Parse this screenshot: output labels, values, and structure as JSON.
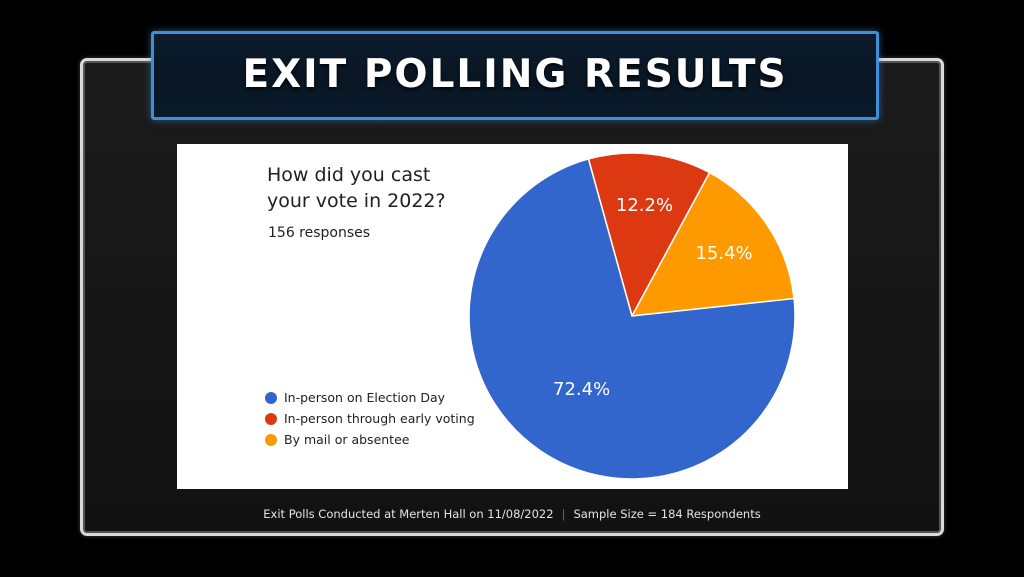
{
  "banner": {
    "title": "EXIT POLLING RESULTS"
  },
  "chart_data": {
    "type": "pie",
    "title_lines": [
      "How did you cast",
      "your vote in 2022?"
    ],
    "subtitle": "156 responses",
    "legend_position": "bottom-left",
    "slices": [
      {
        "label": "In-person on Election Day",
        "value": 72.4,
        "display": "72.4%",
        "color": "#3366cc"
      },
      {
        "label": "In-person through early voting",
        "value": 12.2,
        "display": "12.2%",
        "color": "#dc3912"
      },
      {
        "label": "By mail or absentee",
        "value": 15.4,
        "display": "15.4%",
        "color": "#ff9900"
      }
    ]
  },
  "footer": {
    "left": "Exit Polls Conducted at Merten Hall on 11/08/2022",
    "separator": "|",
    "right": "Sample Size = 184 Respondents"
  }
}
